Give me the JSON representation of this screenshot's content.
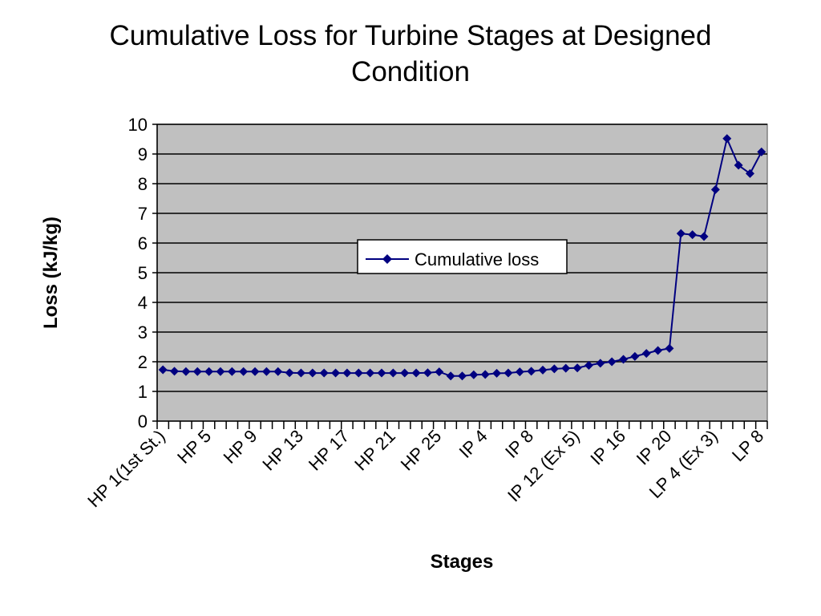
{
  "chart_data": {
    "type": "line",
    "title_line1": "Cumulative Loss for Turbine Stages at Designed",
    "title_line2": "Condition",
    "xlabel": "Stages",
    "ylabel": "Loss (kJ/kg)",
    "ylim": [
      0,
      10
    ],
    "yticks": [
      "0",
      "1",
      "2",
      "3",
      "4",
      "5",
      "6",
      "7",
      "8",
      "9",
      "10"
    ],
    "grid": true,
    "legend_position": "center",
    "plot_background": "#c0c0c0",
    "series_color": "#000080",
    "x_tick_labels": [
      "HP 1(1st St.)",
      "HP 5",
      "HP 9",
      "HP 13",
      "HP 17",
      "HP 21",
      "HP 25",
      "IP 4",
      "IP 8",
      "IP 12 (Ex 5)",
      "IP 16",
      "IP 20",
      "LP 4 (Ex 3)",
      "LP 8"
    ],
    "series": [
      {
        "name": "Cumulative loss",
        "values": [
          1.73,
          1.68,
          1.67,
          1.67,
          1.67,
          1.67,
          1.67,
          1.67,
          1.67,
          1.67,
          1.67,
          1.63,
          1.62,
          1.62,
          1.62,
          1.62,
          1.62,
          1.62,
          1.62,
          1.62,
          1.62,
          1.62,
          1.62,
          1.63,
          1.66,
          1.52,
          1.52,
          1.56,
          1.57,
          1.61,
          1.62,
          1.66,
          1.68,
          1.72,
          1.76,
          1.78,
          1.79,
          1.88,
          1.95,
          2.0,
          2.08,
          2.18,
          2.28,
          2.38,
          2.45,
          6.32,
          6.28,
          6.22,
          7.8,
          9.52,
          8.62,
          8.34,
          9.07
        ]
      }
    ]
  }
}
